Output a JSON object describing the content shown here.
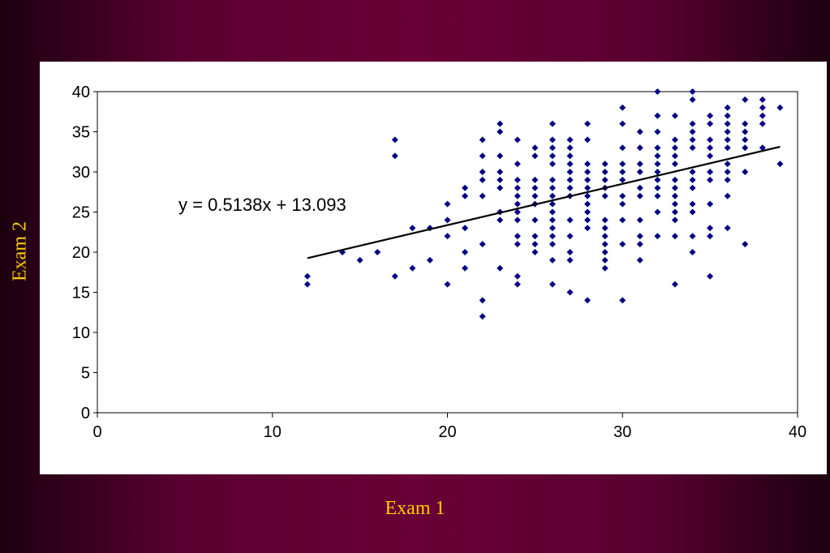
{
  "chart_data": {
    "type": "scatter",
    "xlabel": "Exam 1",
    "ylabel": "Exam 2",
    "xlim": [
      0,
      40
    ],
    "ylim": [
      0,
      40
    ],
    "x_ticks": [
      "0",
      "10",
      "20",
      "30",
      "40"
    ],
    "y_ticks": [
      "0",
      "5",
      "10",
      "15",
      "20",
      "25",
      "30",
      "35",
      "40"
    ],
    "grid": false,
    "legend": "none",
    "marker_color": "#000080",
    "trendline": {
      "slope": 0.5138,
      "intercept": 13.093,
      "x_range": [
        12,
        39
      ],
      "equation_label": "y = 0.5138x + 13.093",
      "color": "#000000"
    },
    "points": [
      [
        12,
        17
      ],
      [
        12,
        16
      ],
      [
        14,
        20
      ],
      [
        15,
        19
      ],
      [
        16,
        20
      ],
      [
        17,
        34
      ],
      [
        17,
        32
      ],
      [
        17,
        17
      ],
      [
        18,
        23
      ],
      [
        18,
        18
      ],
      [
        19,
        23
      ],
      [
        19,
        19
      ],
      [
        20,
        26
      ],
      [
        20,
        24
      ],
      [
        20,
        22
      ],
      [
        20,
        16
      ],
      [
        21,
        28
      ],
      [
        21,
        27
      ],
      [
        21,
        23
      ],
      [
        21,
        20
      ],
      [
        21,
        18
      ],
      [
        22,
        34
      ],
      [
        22,
        32
      ],
      [
        22,
        30
      ],
      [
        22,
        29
      ],
      [
        22,
        27
      ],
      [
        22,
        21
      ],
      [
        22,
        14
      ],
      [
        22,
        12
      ],
      [
        23,
        36
      ],
      [
        23,
        35
      ],
      [
        23,
        32
      ],
      [
        23,
        30
      ],
      [
        23,
        29
      ],
      [
        23,
        28
      ],
      [
        23,
        25
      ],
      [
        23,
        24
      ],
      [
        23,
        18
      ],
      [
        24,
        34
      ],
      [
        24,
        31
      ],
      [
        24,
        29
      ],
      [
        24,
        28
      ],
      [
        24,
        27
      ],
      [
        24,
        26
      ],
      [
        24,
        25
      ],
      [
        24,
        24
      ],
      [
        24,
        22
      ],
      [
        24,
        21
      ],
      [
        24,
        17
      ],
      [
        24,
        16
      ],
      [
        25,
        33
      ],
      [
        25,
        32
      ],
      [
        25,
        29
      ],
      [
        25,
        28
      ],
      [
        25,
        27
      ],
      [
        25,
        26
      ],
      [
        25,
        24
      ],
      [
        25,
        22
      ],
      [
        25,
        21
      ],
      [
        25,
        20
      ],
      [
        26,
        36
      ],
      [
        26,
        34
      ],
      [
        26,
        33
      ],
      [
        26,
        32
      ],
      [
        26,
        31
      ],
      [
        26,
        29
      ],
      [
        26,
        28
      ],
      [
        26,
        27
      ],
      [
        26,
        26
      ],
      [
        26,
        25
      ],
      [
        26,
        24
      ],
      [
        26,
        23
      ],
      [
        26,
        22
      ],
      [
        26,
        21
      ],
      [
        26,
        19
      ],
      [
        26,
        16
      ],
      [
        27,
        34
      ],
      [
        27,
        33
      ],
      [
        27,
        32
      ],
      [
        27,
        31
      ],
      [
        27,
        30
      ],
      [
        27,
        29
      ],
      [
        27,
        28
      ],
      [
        27,
        27
      ],
      [
        27,
        24
      ],
      [
        27,
        22
      ],
      [
        27,
        20
      ],
      [
        27,
        19
      ],
      [
        27,
        15
      ],
      [
        28,
        36
      ],
      [
        28,
        34
      ],
      [
        28,
        31
      ],
      [
        28,
        30
      ],
      [
        28,
        29
      ],
      [
        28,
        28
      ],
      [
        28,
        27
      ],
      [
        28,
        26
      ],
      [
        28,
        25
      ],
      [
        28,
        24
      ],
      [
        28,
        23
      ],
      [
        28,
        14
      ],
      [
        29,
        31
      ],
      [
        29,
        30
      ],
      [
        29,
        29
      ],
      [
        29,
        28
      ],
      [
        29,
        27
      ],
      [
        29,
        24
      ],
      [
        29,
        23
      ],
      [
        29,
        22
      ],
      [
        29,
        21
      ],
      [
        29,
        20
      ],
      [
        29,
        19
      ],
      [
        29,
        18
      ],
      [
        30,
        38
      ],
      [
        30,
        36
      ],
      [
        30,
        33
      ],
      [
        30,
        31
      ],
      [
        30,
        30
      ],
      [
        30,
        29
      ],
      [
        30,
        27
      ],
      [
        30,
        26
      ],
      [
        30,
        24
      ],
      [
        30,
        21
      ],
      [
        30,
        14
      ],
      [
        31,
        35
      ],
      [
        31,
        33
      ],
      [
        31,
        31
      ],
      [
        31,
        30
      ],
      [
        31,
        28
      ],
      [
        31,
        27
      ],
      [
        31,
        24
      ],
      [
        31,
        22
      ],
      [
        31,
        21
      ],
      [
        31,
        19
      ],
      [
        32,
        40
      ],
      [
        32,
        37
      ],
      [
        32,
        35
      ],
      [
        32,
        33
      ],
      [
        32,
        32
      ],
      [
        32,
        31
      ],
      [
        32,
        30
      ],
      [
        32,
        29
      ],
      [
        32,
        28
      ],
      [
        32,
        27
      ],
      [
        32,
        25
      ],
      [
        32,
        22
      ],
      [
        33,
        37
      ],
      [
        33,
        34
      ],
      [
        33,
        33
      ],
      [
        33,
        32
      ],
      [
        33,
        31
      ],
      [
        33,
        29
      ],
      [
        33,
        28
      ],
      [
        33,
        27
      ],
      [
        33,
        26
      ],
      [
        33,
        25
      ],
      [
        33,
        24
      ],
      [
        33,
        22
      ],
      [
        33,
        16
      ],
      [
        34,
        40
      ],
      [
        34,
        39
      ],
      [
        34,
        36
      ],
      [
        34,
        35
      ],
      [
        34,
        34
      ],
      [
        34,
        33
      ],
      [
        34,
        30
      ],
      [
        34,
        29
      ],
      [
        34,
        28
      ],
      [
        34,
        26
      ],
      [
        34,
        25
      ],
      [
        34,
        22
      ],
      [
        34,
        20
      ],
      [
        35,
        37
      ],
      [
        35,
        36
      ],
      [
        35,
        34
      ],
      [
        35,
        33
      ],
      [
        35,
        32
      ],
      [
        35,
        30
      ],
      [
        35,
        29
      ],
      [
        35,
        26
      ],
      [
        35,
        23
      ],
      [
        35,
        22
      ],
      [
        35,
        17
      ],
      [
        36,
        38
      ],
      [
        36,
        37
      ],
      [
        36,
        36
      ],
      [
        36,
        35
      ],
      [
        36,
        34
      ],
      [
        36,
        33
      ],
      [
        36,
        31
      ],
      [
        36,
        30
      ],
      [
        36,
        29
      ],
      [
        36,
        27
      ],
      [
        36,
        23
      ],
      [
        37,
        39
      ],
      [
        37,
        36
      ],
      [
        37,
        35
      ],
      [
        37,
        34
      ],
      [
        37,
        33
      ],
      [
        37,
        30
      ],
      [
        37,
        21
      ],
      [
        38,
        39
      ],
      [
        38,
        38
      ],
      [
        38,
        37
      ],
      [
        38,
        36
      ],
      [
        38,
        33
      ],
      [
        39,
        38
      ],
      [
        39,
        31
      ]
    ]
  }
}
